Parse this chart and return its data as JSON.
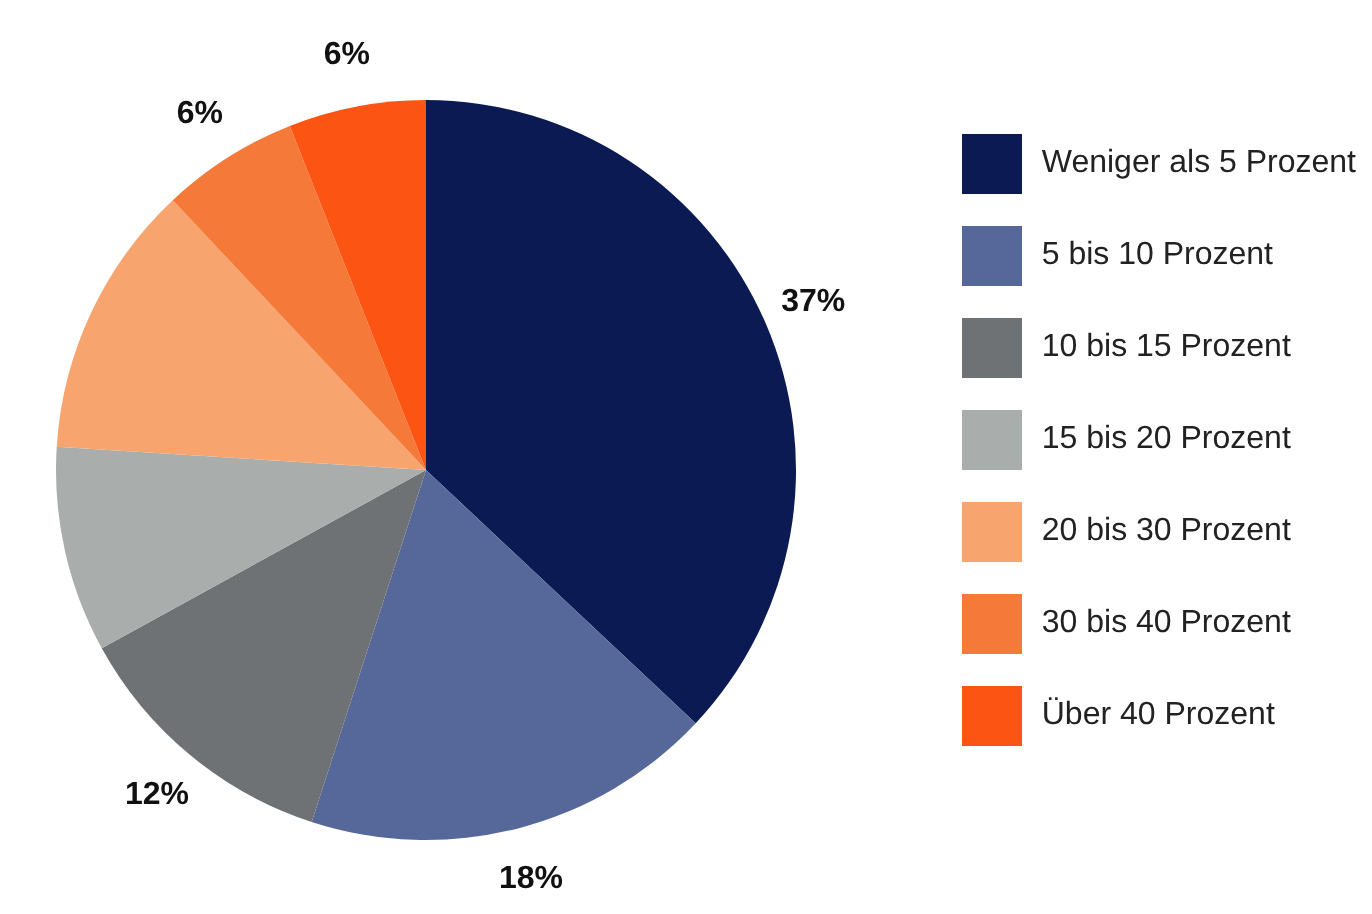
{
  "chart_data": {
    "type": "pie",
    "categories": [
      "Weniger als 5 Prozent",
      "5 bis 10 Prozent",
      "10 bis 15 Prozent",
      "15 bis 20 Prozent",
      "20 bis 30 Prozent",
      "30 bis 40 Prozent",
      "Über 40 Prozent"
    ],
    "values": [
      37,
      18,
      12,
      9,
      12,
      6,
      6
    ],
    "colors": [
      "#0b1a52",
      "#56689a",
      "#6e7275",
      "#a9adac",
      "#f7a46f",
      "#f57a3a",
      "#fc5413"
    ],
    "value_labels": [
      "37%",
      "18%",
      "12%",
      null,
      null,
      "6%",
      "6%"
    ],
    "legend": "right"
  }
}
